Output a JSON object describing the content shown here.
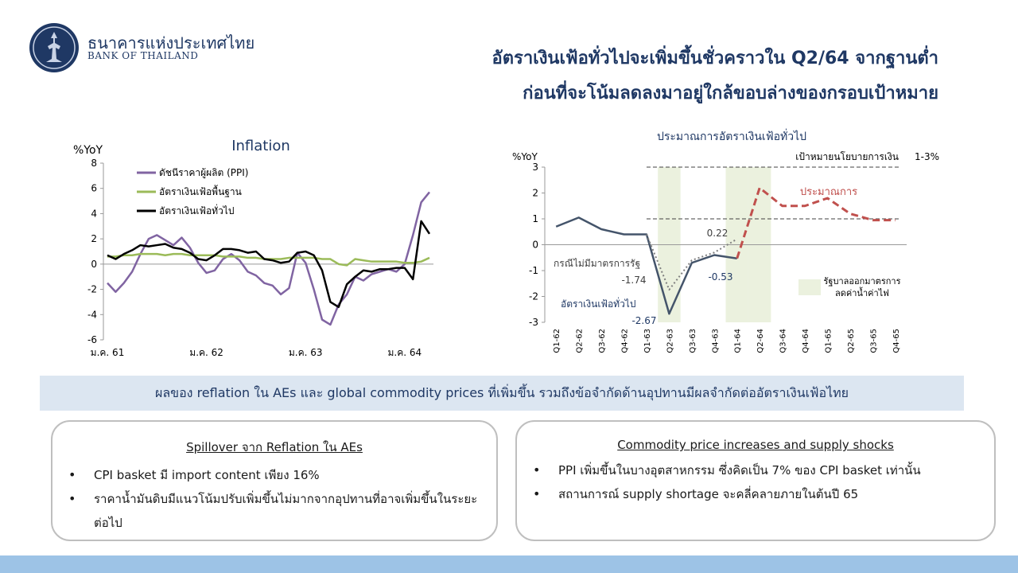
{
  "header": {
    "org_name_th": "ธนาคารแห่งประเทศไทย",
    "org_name_en": "BANK OF THAILAND",
    "logo_icon": "bank-of-thailand-emblem-icon",
    "title_line1": "อัตราเงินเฟ้อทั่วไปจะเพิ่มขึ้นชั่วคราวใน  Q2/64  จากฐานต่ำ",
    "title_line2": "ก่อนที่จะโน้มลดลงมาอยู่ใกล้ขอบล่างของกรอบเป้าหมาย",
    "title_color": "#1f3864"
  },
  "chart_data": [
    {
      "type": "line",
      "title": "Inflation",
      "ylabel": "%YoY",
      "ylim": [
        -6,
        8
      ],
      "yticks": [
        -6,
        -4,
        -2,
        0,
        2,
        4,
        6,
        8
      ],
      "xtick_labels": [
        "ม.ค. 61",
        "ม.ค. 62",
        "ม.ค. 63",
        "ม.ค. 64"
      ],
      "xtick_index": [
        0,
        12,
        24,
        36
      ],
      "legend_position": "top-left",
      "series": [
        {
          "name": "ดัชนีราคาผู้ผลิต  (PPI)",
          "color": "#8064a2",
          "values": [
            -1.5,
            -2.2,
            -1.5,
            -0.6,
            0.8,
            2.0,
            2.3,
            1.9,
            1.5,
            2.1,
            1.3,
            0.1,
            -0.7,
            -0.5,
            0.4,
            0.8,
            0.3,
            -0.6,
            -0.9,
            -1.5,
            -1.7,
            -2.4,
            -1.9,
            0.9,
            0.1,
            -2.0,
            -4.4,
            -4.8,
            -3.2,
            -2.4,
            -1.0,
            -1.3,
            -0.8,
            -0.6,
            -0.4,
            -0.6,
            0.0,
            2.3,
            4.9,
            5.7
          ]
        },
        {
          "name": "อัตราเงินเฟ้อพื้นฐาน",
          "color": "#9bbb59",
          "values": [
            0.6,
            0.6,
            0.7,
            0.7,
            0.8,
            0.8,
            0.8,
            0.7,
            0.8,
            0.8,
            0.7,
            0.7,
            0.7,
            0.7,
            0.6,
            0.6,
            0.6,
            0.5,
            0.5,
            0.4,
            0.4,
            0.4,
            0.5,
            0.5,
            0.5,
            0.5,
            0.4,
            0.4,
            0.0,
            -0.1,
            0.4,
            0.3,
            0.2,
            0.2,
            0.2,
            0.2,
            0.1,
            0.1,
            0.2,
            0.5
          ]
        },
        {
          "name": "อัตราเงินเฟ้อทั่วไป",
          "color": "#000000",
          "values": [
            0.7,
            0.4,
            0.8,
            1.1,
            1.5,
            1.4,
            1.5,
            1.6,
            1.3,
            1.2,
            0.9,
            0.4,
            0.3,
            0.7,
            1.2,
            1.2,
            1.1,
            0.9,
            1.0,
            0.4,
            0.3,
            0.1,
            0.2,
            0.9,
            1.0,
            0.7,
            -0.5,
            -3.0,
            -3.4,
            -1.6,
            -1.0,
            -0.5,
            -0.6,
            -0.4,
            -0.4,
            -0.3,
            -0.3,
            -1.2,
            3.4,
            2.4
          ]
        }
      ]
    },
    {
      "type": "line",
      "title": "ประมาณการอัตราเงินเฟ้อทั่วไป",
      "ylabel": "%YoY",
      "ylim": [
        -3,
        3
      ],
      "yticks": [
        -3,
        -2,
        -1,
        0,
        1,
        2,
        3
      ],
      "categories": [
        "Q1-62",
        "Q2-62",
        "Q3-62",
        "Q4-62",
        "Q1-63",
        "Q2-63",
        "Q3-63",
        "Q4-63",
        "Q1-64",
        "Q2-64",
        "Q3-64",
        "Q4-64",
        "Q1-65",
        "Q2-65",
        "Q3-65",
        "Q4-65"
      ],
      "series": [
        {
          "name": "อัตราเงินเฟ้อทั่วไป",
          "color": "#44546a",
          "style": "solid",
          "values": [
            0.7,
            1.05,
            0.6,
            0.4,
            0.4,
            -2.67,
            -0.7,
            -0.4,
            -0.53,
            null,
            null,
            null,
            null,
            null,
            null,
            null
          ]
        },
        {
          "name": "กรณีไม่มีมาตรการรัฐ",
          "color": "#7f7f7f",
          "style": "dotted",
          "values": [
            null,
            null,
            null,
            null,
            0.4,
            -1.74,
            -0.6,
            -0.3,
            0.22,
            null,
            null,
            null,
            null,
            null,
            null,
            null
          ]
        },
        {
          "name": "ประมาณการ",
          "color": "#c0504d",
          "style": "dashed",
          "values": [
            null,
            null,
            null,
            null,
            null,
            null,
            null,
            null,
            -0.53,
            2.2,
            1.5,
            1.5,
            1.8,
            1.2,
            0.95,
            0.95
          ]
        }
      ],
      "target_band": {
        "label": "เป้าหมายนโยบายการเงิน",
        "range_label": "1-3%",
        "lower": 1,
        "upper": 3
      },
      "shaded_periods": [
        5,
        8,
        9
      ],
      "shaded_label": [
        "รัฐบาลออกมาตรการ",
        "ลดค่าน้ำค่าไฟ"
      ],
      "shade_color": "#ebf1de",
      "annotations": {
        "v_022": "0.22",
        "v_174": "-1.74",
        "v_053": "-0.53",
        "v_267": "-2.67"
      }
    }
  ],
  "banner": {
    "text": "ผลของ reflation ใน AEs และ global commodity prices ที่เพิ่มขึ้น รวมถึงข้อจำกัดด้านอุปทานมีผลจำกัดต่ออัตราเงินเฟ้อไทย",
    "bg_color": "#dce6f1"
  },
  "box_left": {
    "title": "Spillover จาก Reflation ใน AEs",
    "items": [
      "CPI basket มี import content เพียง 16%",
      "ราคาน้ำมันดิบมีแนวโน้มปรับเพิ่มขึ้นไม่มากจากอุปทานที่อาจเพิ่มขึ้นในระยะต่อไป"
    ]
  },
  "box_right": {
    "title": "Commodity price increases and supply shocks",
    "items": [
      "PPI เพิ่มขึ้นในบางอุตสาหกรรม ซึ่งคิดเป็น 7% ของ CPI basket เท่านั้น",
      "สถานการณ์ supply shortage จะคลี่คลายภายในต้นปี 65"
    ]
  }
}
